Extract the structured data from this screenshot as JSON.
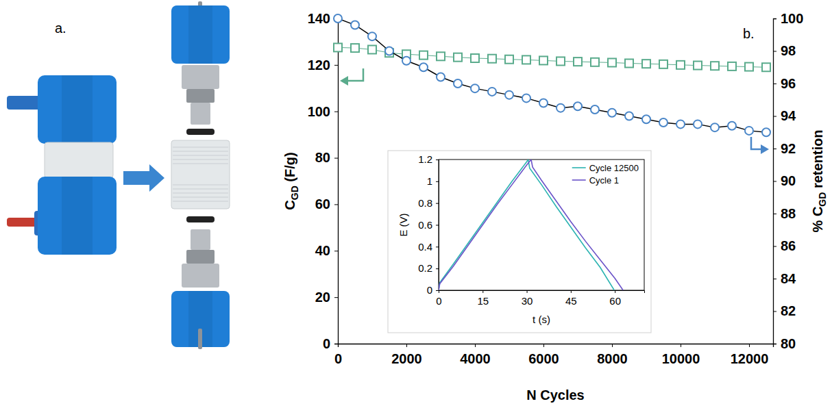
{
  "photo_panel": {
    "label": "a."
  },
  "chart_data": [
    {
      "type": "line",
      "panel_label": "b.",
      "xlabel": "N Cycles",
      "ylabel": [
        "C",
        "GD",
        " (F/g)"
      ],
      "y2label": [
        "% C",
        "GD",
        " retention"
      ],
      "x": [
        0,
        500,
        1000,
        1500,
        2000,
        2500,
        3000,
        3500,
        4000,
        4500,
        5000,
        5500,
        6000,
        6500,
        7000,
        7500,
        8000,
        8500,
        9000,
        9500,
        10000,
        10500,
        11000,
        11500,
        12000,
        12500
      ],
      "xlim": [
        0,
        12700
      ],
      "xticks": [
        0,
        2000,
        4000,
        6000,
        8000,
        10000,
        12000
      ],
      "ylim": [
        0,
        140
      ],
      "yticks": [
        0,
        20,
        40,
        60,
        80,
        100,
        120,
        140
      ],
      "y2lim": [
        80,
        100
      ],
      "y2ticks": [
        80,
        82,
        84,
        86,
        88,
        90,
        92,
        94,
        96,
        98,
        100
      ],
      "series": [
        {
          "color": "#5aab8c",
          "marker": "square",
          "line_style": "solid",
          "values": [
            127.5,
            127.3,
            126.6,
            125.2,
            124.6,
            124.2,
            123.7,
            123.3,
            122.9,
            122.7,
            122.4,
            122.2,
            121.9,
            121.6,
            121.4,
            121.2,
            121.0,
            120.7,
            120.5,
            120.3,
            120.0,
            119.8,
            119.6,
            119.4,
            119.2,
            119.0
          ]
        },
        {
          "color": "#4a86c8",
          "marker": "circle",
          "line_style": "solid",
          "axis": "y2",
          "values": [
            100,
            99.6,
            98.9,
            98.0,
            97.4,
            97.0,
            96.4,
            96.0,
            95.7,
            95.5,
            95.3,
            95.1,
            94.8,
            94.5,
            94.6,
            94.4,
            94.2,
            94.0,
            93.8,
            93.6,
            93.5,
            93.5,
            93.3,
            93.4,
            93.1,
            93.0
          ]
        }
      ]
    },
    {
      "type": "line",
      "xlabel": "t (s)",
      "ylabel": "E (V)",
      "xlim": [
        0,
        70
      ],
      "xticks": [
        0,
        15,
        30,
        45,
        60
      ],
      "ylim": [
        0,
        1.2
      ],
      "yticks": [
        0,
        0.2,
        0.4,
        0.6,
        0.8,
        1,
        1.2
      ],
      "legend": "top-right",
      "series": [
        {
          "name": "Cycle 12500",
          "color": "#2bb3b1",
          "line_style": "solid",
          "x": [
            0,
            0.4,
            5,
            10,
            15,
            20,
            25,
            30,
            30.5,
            31,
            35,
            40,
            45,
            50,
            55,
            59.8
          ],
          "values": [
            0,
            0.07,
            0.24,
            0.43,
            0.62,
            0.81,
            1.0,
            1.18,
            1.2,
            1.12,
            0.97,
            0.77,
            0.58,
            0.39,
            0.21,
            0
          ]
        },
        {
          "name": "Cycle 1",
          "color": "#6a52c8",
          "line_style": "solid",
          "x": [
            0,
            0.4,
            5,
            10,
            15,
            20,
            25,
            30,
            31.5,
            32,
            35,
            40,
            45,
            50,
            55,
            60,
            62.8
          ],
          "values": [
            0,
            0.06,
            0.22,
            0.41,
            0.6,
            0.79,
            0.97,
            1.15,
            1.2,
            1.13,
            1.01,
            0.82,
            0.63,
            0.45,
            0.28,
            0.11,
            0
          ]
        }
      ]
    }
  ]
}
